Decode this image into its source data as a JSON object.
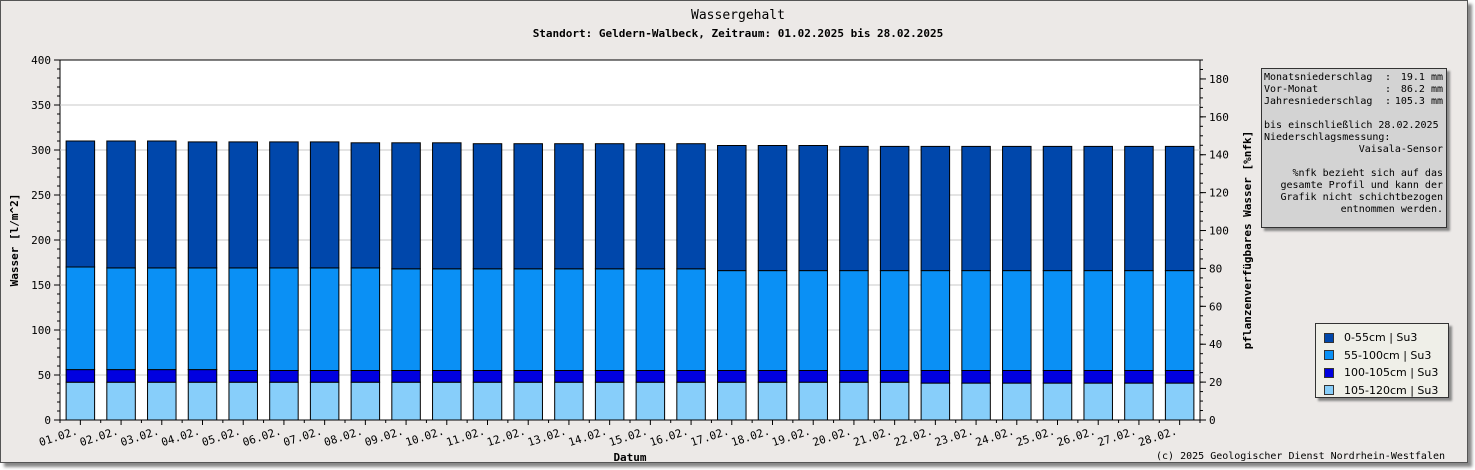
{
  "chart_data": {
    "type": "bar",
    "title": "Wassergehalt",
    "subtitle": "Standort: Geldern-Walbeck, Zeitraum: 01.02.2025 bis 28.02.2025",
    "xlabel": "Datum",
    "ylabel": "Wasser [l/m^2]",
    "y2label": "pflanzenverfügbares Wasser [%nfk]",
    "ylim": [
      0,
      400
    ],
    "y2lim": [
      0,
      190
    ],
    "yticks": [
      "0",
      "50",
      "100",
      "150",
      "200",
      "250",
      "300",
      "350",
      "400"
    ],
    "y2ticks": [
      "0",
      "20",
      "40",
      "60",
      "80",
      "100",
      "120",
      "140",
      "160",
      "180"
    ],
    "stacked": true,
    "grid": true,
    "legend_position": "right",
    "categories": [
      "01.02.",
      "02.02.",
      "03.02.",
      "04.02.",
      "05.02.",
      "06.02.",
      "07.02.",
      "08.02.",
      "09.02.",
      "10.02.",
      "11.02.",
      "12.02.",
      "13.02.",
      "14.02.",
      "15.02.",
      "16.02.",
      "17.02.",
      "18.02.",
      "19.02.",
      "20.02.",
      "21.02.",
      "22.02.",
      "23.02.",
      "24.02.",
      "25.02.",
      "26.02.",
      "27.02.",
      "28.02."
    ],
    "series": [
      {
        "name": "105-120cm | Su3",
        "color": "#87cefa",
        "values": [
          42,
          42,
          42,
          42,
          42,
          42,
          42,
          42,
          42,
          42,
          42,
          42,
          42,
          42,
          42,
          42,
          42,
          42,
          42,
          42,
          42,
          41,
          41,
          41,
          41,
          41,
          41,
          41
        ]
      },
      {
        "name": "100-105cm | Su3",
        "color": "#0000e0",
        "values": [
          14,
          14,
          14,
          14,
          13,
          13,
          13,
          13,
          13,
          13,
          13,
          13,
          13,
          13,
          13,
          13,
          13,
          13,
          13,
          13,
          13,
          14,
          14,
          14,
          14,
          14,
          14,
          14
        ]
      },
      {
        "name": "55-100cm | Su3",
        "color": "#0a90f5",
        "values": [
          114,
          113,
          113,
          113,
          114,
          114,
          114,
          114,
          113,
          113,
          113,
          113,
          113,
          113,
          113,
          113,
          111,
          111,
          111,
          111,
          111,
          111,
          111,
          111,
          111,
          111,
          111,
          111
        ]
      },
      {
        "name": "0-55cm | Su3",
        "color": "#0047ab",
        "values": [
          140,
          141,
          141,
          140,
          140,
          140,
          140,
          139,
          140,
          140,
          139,
          139,
          139,
          139,
          139,
          139,
          139,
          139,
          139,
          138,
          138,
          138,
          138,
          138,
          138,
          138,
          138,
          138
        ]
      }
    ]
  },
  "info": {
    "rows": [
      {
        "label": "Monatsniederschlag",
        "value": "19.1 mm"
      },
      {
        "label": "Vor-Monat",
        "value": "86.2 mm"
      },
      {
        "label": "Jahresniederschlag",
        "value": "105.3 mm"
      }
    ],
    "until": "bis einschließlich 28.02.2025",
    "measurement_label": "Niederschlagsmessung:",
    "measurement_value": "Vaisala-Sensor",
    "note_lines": [
      "%nfk bezieht sich auf das",
      "gesamte Profil und kann der",
      "Grafik nicht schichtbezogen",
      "entnommen werden."
    ]
  },
  "footer": {
    "copyright": "(c) 2025 Geologischer Dienst Nordrhein-Westfalen"
  }
}
